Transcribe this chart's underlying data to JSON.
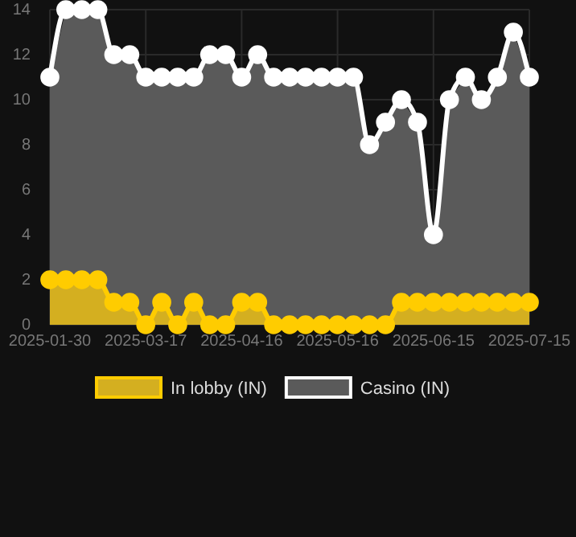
{
  "chart_data": {
    "type": "area",
    "categories": [
      "2025-01-30",
      null,
      null,
      null,
      null,
      null,
      "2025-03-17",
      null,
      null,
      null,
      null,
      null,
      "2025-04-16",
      null,
      null,
      null,
      null,
      null,
      "2025-05-16",
      null,
      null,
      null,
      null,
      null,
      "2025-06-15",
      null,
      null,
      null,
      null,
      null,
      "2025-07-15"
    ],
    "series": [
      {
        "name": "In lobby (IN)",
        "color": "#ffcc00",
        "values": [
          2,
          2,
          2,
          2,
          1,
          1,
          0,
          1,
          0,
          1,
          0,
          0,
          1,
          1,
          0,
          0,
          0,
          0,
          0,
          0,
          0,
          0,
          1,
          1,
          1,
          1,
          1,
          1,
          1,
          1,
          1
        ]
      },
      {
        "name": "Casino (IN)",
        "color": "#ffffff",
        "values": [
          11,
          14,
          14,
          14,
          12,
          12,
          11,
          11,
          11,
          11,
          12,
          12,
          11,
          12,
          11,
          11,
          11,
          11,
          11,
          11,
          8,
          9,
          10,
          9,
          4,
          10,
          11,
          10,
          11,
          13,
          11
        ]
      }
    ],
    "ylim": [
      0,
      14
    ],
    "yticks": [
      0,
      2,
      4,
      6,
      8,
      10,
      12,
      14
    ],
    "grid": true,
    "legend": "bottom",
    "marker": "circle"
  }
}
